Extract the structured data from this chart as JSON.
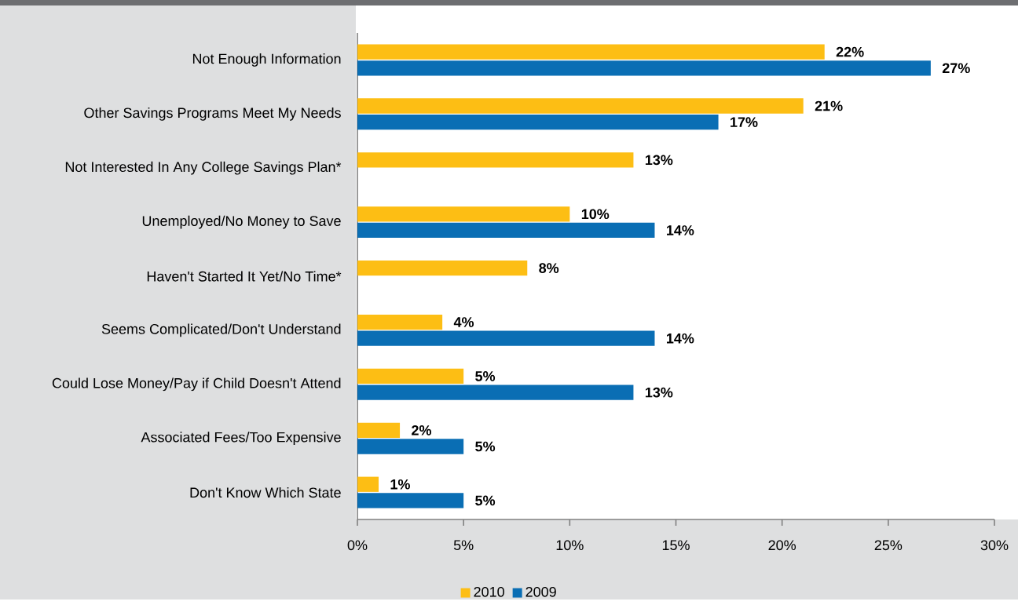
{
  "chart_data": {
    "type": "bar",
    "orientation": "horizontal",
    "categories": [
      "Not Enough Information",
      "Other Savings Programs Meet My Needs",
      "Not Interested In Any College Savings Plan*",
      "Unemployed/No Money to Save",
      "Haven't Started It Yet/No Time*",
      "Seems Complicated/Don't Understand",
      "Could Lose Money/Pay if Child Doesn't Attend",
      "Associated Fees/Too Expensive",
      "Don't Know Which State"
    ],
    "series": [
      {
        "name": "2010",
        "color": "#fdbe14",
        "values": [
          22,
          21,
          13,
          10,
          8,
          4,
          5,
          2,
          1
        ],
        "value_labels": [
          "22%",
          "21%",
          "13%",
          "10%",
          "8%",
          "4%",
          "5%",
          "2%",
          "1%"
        ]
      },
      {
        "name": "2009",
        "color": "#0a6eb4",
        "values": [
          27,
          17,
          null,
          14,
          null,
          14,
          13,
          5,
          5
        ],
        "value_labels": [
          "27%",
          "17%",
          null,
          "14%",
          null,
          "14%",
          "13%",
          "5%",
          "5%"
        ]
      }
    ],
    "xlim": [
      0,
      30
    ],
    "xticks": [
      {
        "value": 0,
        "label": "0%"
      },
      {
        "value": 5,
        "label": "5%"
      },
      {
        "value": 10,
        "label": "10%"
      },
      {
        "value": 15,
        "label": "15%"
      },
      {
        "value": 20,
        "label": "20%"
      },
      {
        "value": 25,
        "label": "25%"
      },
      {
        "value": 30,
        "label": "30%"
      }
    ],
    "legend": "bottom",
    "grid": false
  }
}
